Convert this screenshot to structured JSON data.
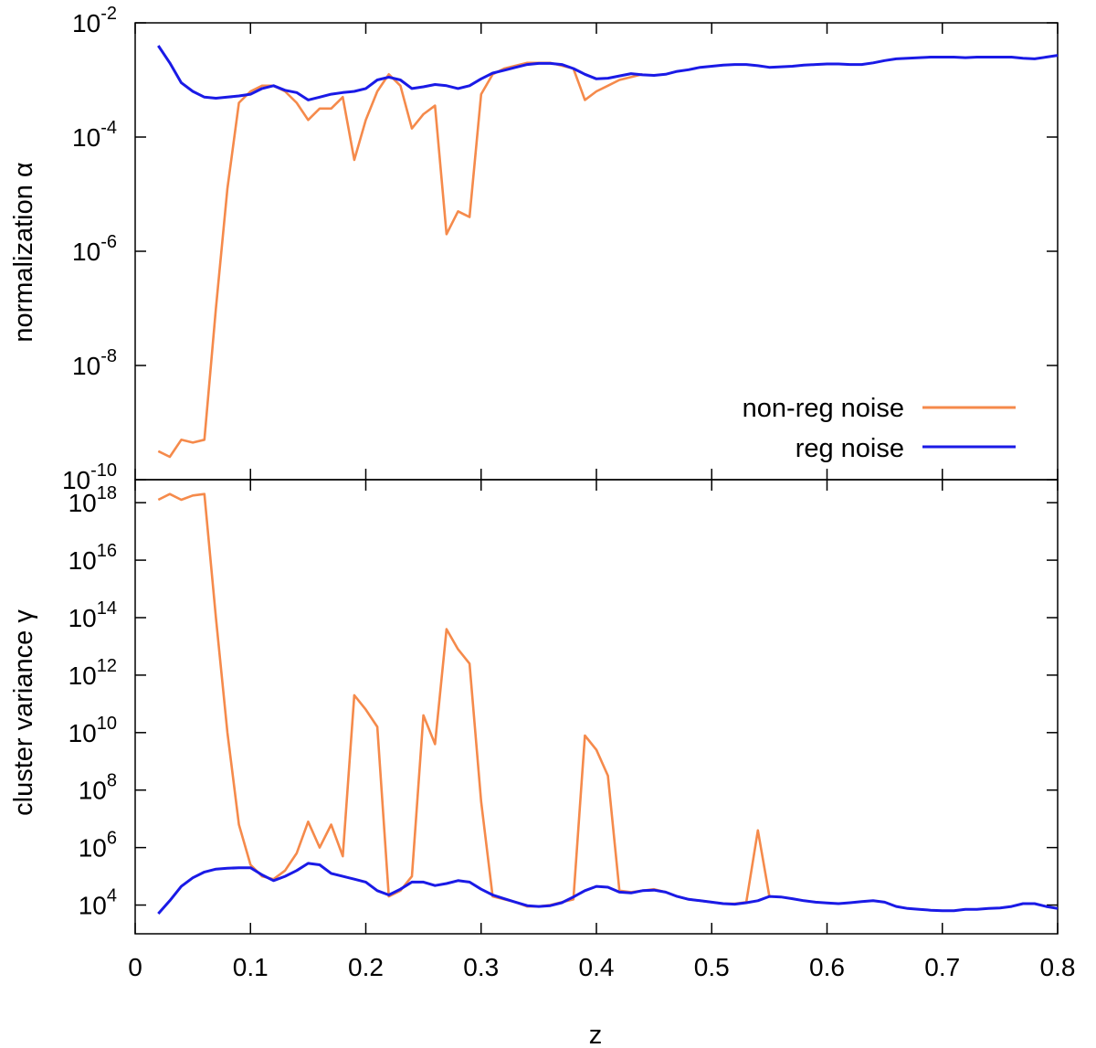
{
  "chart_data": {
    "type": "line",
    "xlabel": "z",
    "xlim": [
      0,
      0.8
    ],
    "x_ticks": [
      "0",
      "0.1",
      "0.2",
      "0.3",
      "0.4",
      "0.5",
      "0.6",
      "0.7",
      "0.8"
    ],
    "x_tick_values": [
      0,
      0.1,
      0.2,
      0.3,
      0.4,
      0.5,
      0.6,
      0.7,
      0.8
    ],
    "legend": {
      "placement": "bottom-right of top panel",
      "entries": [
        "non-reg noise",
        "reg noise"
      ]
    },
    "colors": {
      "non_reg": "#f58a4b",
      "reg": "#1a1ae6"
    },
    "panels": [
      {
        "id": "top",
        "ylabel": "normalization α",
        "yscale": "log",
        "ylim_exp": [
          -10,
          -2
        ],
        "y_tick_exps": [
          -2,
          -4,
          -6,
          -8,
          -10
        ],
        "y_ticks": [
          {
            "base": "10",
            "exp": "-2"
          },
          {
            "base": "10",
            "exp": "-4"
          },
          {
            "base": "10",
            "exp": "-6"
          },
          {
            "base": "10",
            "exp": "-8"
          },
          {
            "base": "10",
            "exp": "-10"
          }
        ],
        "series": [
          {
            "name": "non-reg noise",
            "x": [
              0.02,
              0.03,
              0.04,
              0.05,
              0.06,
              0.07,
              0.08,
              0.09,
              0.1,
              0.11,
              0.12,
              0.13,
              0.14,
              0.15,
              0.16,
              0.17,
              0.18,
              0.19,
              0.2,
              0.21,
              0.22,
              0.23,
              0.24,
              0.25,
              0.26,
              0.27,
              0.28,
              0.29,
              0.3,
              0.31,
              0.32,
              0.33,
              0.34,
              0.35,
              0.36,
              0.37,
              0.38,
              0.39,
              0.4,
              0.41,
              0.42,
              0.43,
              0.44
            ],
            "y_log10": [
              -9.5,
              -9.6,
              -9.3,
              -9.35,
              -9.3,
              -7.0,
              -4.9,
              -3.4,
              -3.2,
              -3.1,
              -3.1,
              -3.2,
              -3.4,
              -3.7,
              -3.5,
              -3.5,
              -3.3,
              -4.4,
              -3.7,
              -3.2,
              -2.9,
              -3.1,
              -3.85,
              -3.6,
              -3.45,
              -5.7,
              -5.3,
              -5.4,
              -3.25,
              -2.9,
              -2.8,
              -2.75,
              -2.7,
              -2.7,
              -2.7,
              -2.75,
              -2.8,
              -3.35,
              -3.2,
              -3.1,
              -3.0,
              -2.95,
              -2.9
            ]
          },
          {
            "name": "reg noise",
            "x": [
              0.02,
              0.03,
              0.04,
              0.05,
              0.06,
              0.07,
              0.08,
              0.09,
              0.1,
              0.11,
              0.12,
              0.13,
              0.14,
              0.15,
              0.16,
              0.17,
              0.18,
              0.19,
              0.2,
              0.21,
              0.22,
              0.23,
              0.24,
              0.25,
              0.26,
              0.27,
              0.28,
              0.29,
              0.3,
              0.31,
              0.32,
              0.33,
              0.34,
              0.35,
              0.36,
              0.37,
              0.38,
              0.39,
              0.4,
              0.41,
              0.42,
              0.43,
              0.44,
              0.45,
              0.46,
              0.47,
              0.48,
              0.49,
              0.5,
              0.51,
              0.52,
              0.53,
              0.54,
              0.55,
              0.56,
              0.57,
              0.58,
              0.59,
              0.6,
              0.61,
              0.62,
              0.63,
              0.64,
              0.65,
              0.66,
              0.67,
              0.68,
              0.69,
              0.7,
              0.71,
              0.72,
              0.73,
              0.74,
              0.75,
              0.76,
              0.77,
              0.78,
              0.79,
              0.8
            ],
            "y_log10": [
              -2.4,
              -2.7,
              -3.05,
              -3.2,
              -3.3,
              -3.32,
              -3.3,
              -3.28,
              -3.25,
              -3.15,
              -3.1,
              -3.18,
              -3.22,
              -3.35,
              -3.3,
              -3.25,
              -3.22,
              -3.2,
              -3.15,
              -3.0,
              -2.95,
              -3.0,
              -3.15,
              -3.12,
              -3.08,
              -3.1,
              -3.15,
              -3.1,
              -2.98,
              -2.88,
              -2.83,
              -2.78,
              -2.73,
              -2.71,
              -2.71,
              -2.73,
              -2.8,
              -2.9,
              -2.98,
              -2.97,
              -2.93,
              -2.89,
              -2.91,
              -2.92,
              -2.9,
              -2.85,
              -2.82,
              -2.78,
              -2.76,
              -2.74,
              -2.73,
              -2.73,
              -2.75,
              -2.78,
              -2.77,
              -2.76,
              -2.74,
              -2.73,
              -2.72,
              -2.72,
              -2.73,
              -2.73,
              -2.7,
              -2.66,
              -2.63,
              -2.62,
              -2.61,
              -2.6,
              -2.6,
              -2.6,
              -2.61,
              -2.6,
              -2.6,
              -2.6,
              -2.6,
              -2.62,
              -2.63,
              -2.6,
              -2.57
            ]
          }
        ]
      },
      {
        "id": "bottom",
        "ylabel": "cluster variance γ",
        "yscale": "log",
        "ylim_exp": [
          3,
          18.8
        ],
        "y_tick_exps": [
          18,
          16,
          14,
          12,
          10,
          8,
          6,
          4
        ],
        "y_ticks": [
          {
            "base": "10",
            "exp": "18"
          },
          {
            "base": "10",
            "exp": "16"
          },
          {
            "base": "10",
            "exp": "14"
          },
          {
            "base": "10",
            "exp": "12"
          },
          {
            "base": "10",
            "exp": "10"
          },
          {
            "base": "10",
            "exp": "8"
          },
          {
            "base": "10",
            "exp": "6"
          },
          {
            "base": "10",
            "exp": "4"
          }
        ],
        "series": [
          {
            "name": "non-reg noise",
            "x": [
              0.02,
              0.03,
              0.04,
              0.05,
              0.06,
              0.07,
              0.08,
              0.09,
              0.1,
              0.11,
              0.12,
              0.13,
              0.14,
              0.15,
              0.16,
              0.17,
              0.18,
              0.19,
              0.2,
              0.21,
              0.22,
              0.23,
              0.24,
              0.25,
              0.26,
              0.27,
              0.28,
              0.29,
              0.3,
              0.31,
              0.32,
              0.33,
              0.34,
              0.35,
              0.36,
              0.37,
              0.38,
              0.39,
              0.4,
              0.41,
              0.42,
              0.43,
              0.44,
              0.45,
              0.46,
              0.47,
              0.48,
              0.49,
              0.5,
              0.51,
              0.52,
              0.53,
              0.54,
              0.55
            ],
            "y_log10": [
              18.1,
              18.3,
              18.1,
              18.25,
              18.3,
              14.0,
              10.0,
              6.8,
              5.4,
              5.0,
              4.9,
              5.2,
              5.8,
              6.9,
              6.0,
              6.8,
              5.7,
              11.3,
              10.8,
              10.2,
              4.3,
              4.5,
              5.0,
              10.6,
              9.6,
              13.6,
              12.9,
              12.4,
              7.6,
              4.3,
              4.2,
              4.1,
              3.95,
              3.95,
              4.0,
              4.1,
              4.2,
              9.9,
              9.4,
              8.5,
              4.5,
              4.45,
              4.5,
              4.55,
              4.45,
              4.3,
              4.2,
              4.15,
              4.1,
              4.05,
              4.05,
              4.1,
              6.6,
              4.3
            ]
          },
          {
            "name": "reg noise",
            "x": [
              0.02,
              0.03,
              0.04,
              0.05,
              0.06,
              0.07,
              0.08,
              0.09,
              0.1,
              0.11,
              0.12,
              0.13,
              0.14,
              0.15,
              0.16,
              0.17,
              0.18,
              0.19,
              0.2,
              0.21,
              0.22,
              0.23,
              0.24,
              0.25,
              0.26,
              0.27,
              0.28,
              0.29,
              0.3,
              0.31,
              0.32,
              0.33,
              0.34,
              0.35,
              0.36,
              0.37,
              0.38,
              0.39,
              0.4,
              0.41,
              0.42,
              0.43,
              0.44,
              0.45,
              0.46,
              0.47,
              0.48,
              0.49,
              0.5,
              0.51,
              0.52,
              0.53,
              0.54,
              0.55,
              0.56,
              0.57,
              0.58,
              0.59,
              0.6,
              0.61,
              0.62,
              0.63,
              0.64,
              0.65,
              0.66,
              0.67,
              0.68,
              0.69,
              0.7,
              0.71,
              0.72,
              0.73,
              0.74,
              0.75,
              0.76,
              0.77,
              0.78,
              0.79,
              0.8
            ],
            "y_log10": [
              3.7,
              4.15,
              4.65,
              4.95,
              5.15,
              5.25,
              5.28,
              5.3,
              5.3,
              5.05,
              4.85,
              5.0,
              5.2,
              5.45,
              5.4,
              5.1,
              5.0,
              4.9,
              4.8,
              4.5,
              4.35,
              4.55,
              4.8,
              4.8,
              4.68,
              4.75,
              4.85,
              4.8,
              4.55,
              4.35,
              4.22,
              4.1,
              3.98,
              3.95,
              3.98,
              4.08,
              4.28,
              4.5,
              4.65,
              4.62,
              4.45,
              4.42,
              4.5,
              4.52,
              4.45,
              4.3,
              4.2,
              4.15,
              4.1,
              4.05,
              4.03,
              4.08,
              4.15,
              4.3,
              4.28,
              4.22,
              4.15,
              4.1,
              4.07,
              4.05,
              4.08,
              4.12,
              4.15,
              4.1,
              3.95,
              3.88,
              3.85,
              3.82,
              3.8,
              3.8,
              3.85,
              3.85,
              3.88,
              3.9,
              3.95,
              4.05,
              4.05,
              3.95,
              3.88
            ]
          }
        ]
      }
    ]
  }
}
